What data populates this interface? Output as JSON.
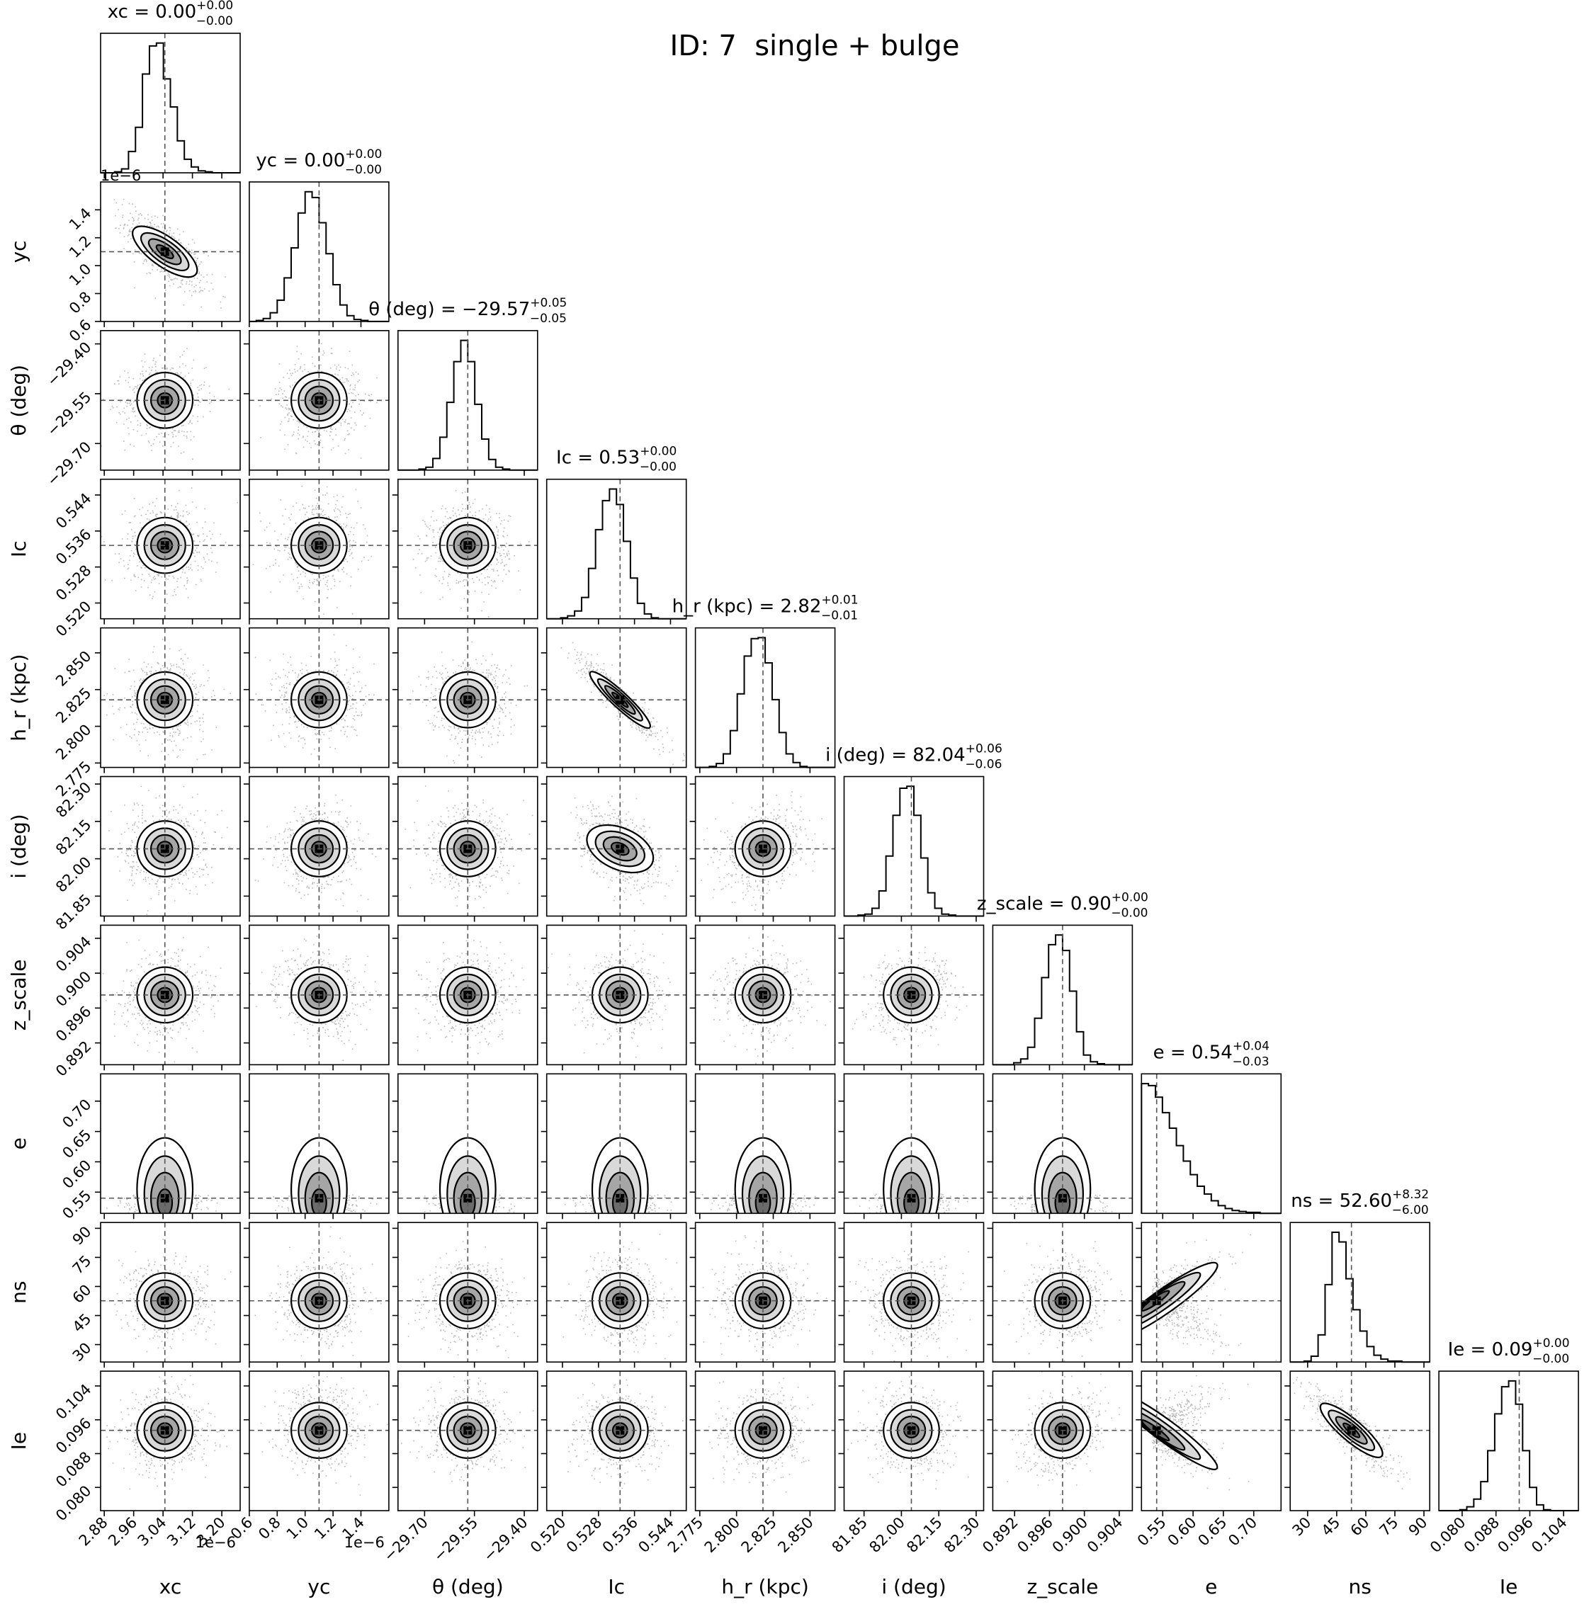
{
  "figure": {
    "suptitle": "ID: 7  single + bulge",
    "background": "#ffffff",
    "ink_color": "#000000",
    "marker_color": "#808080",
    "offset_text": "1e−6"
  },
  "chart_data": {
    "type": "corner",
    "n_params": 10,
    "params": [
      {
        "key": "xc",
        "label": "xc",
        "title_name": "xc",
        "median_text": "0.00",
        "plus": "+0.00",
        "minus": "−0.00",
        "median": 3.045e-06,
        "range": [
          2.87e-06,
          3.25e-06
        ],
        "scale_label": "1e−6",
        "ticks": [
          2.88e-06,
          2.96e-06,
          3.04e-06,
          3.12e-06,
          3.2e-06
        ],
        "tick_labels": [
          "2.88",
          "2.96",
          "3.04",
          "3.12",
          "3.20"
        ]
      },
      {
        "key": "yc",
        "label": "yc",
        "title_name": "yc",
        "median_text": "0.00",
        "plus": "+0.00",
        "minus": "−0.00",
        "median": 1.1e-06,
        "range": [
          6e-07,
          1.6e-06
        ],
        "scale_label": "1e−6",
        "ticks": [
          6e-07,
          8e-07,
          1e-06,
          1.2e-06,
          1.4e-06
        ],
        "tick_labels": [
          "0.6",
          "0.8",
          "1.0",
          "1.2",
          "1.4"
        ]
      },
      {
        "key": "theta",
        "label": "θ (deg)",
        "title_name": "θ (deg)",
        "median_text": "−29.57",
        "plus": "+0.05",
        "minus": "−0.05",
        "median": -29.57,
        "range": [
          -29.78,
          -29.36
        ],
        "ticks": [
          -29.7,
          -29.55,
          -29.4
        ],
        "tick_labels": [
          "−29.70",
          "−29.55",
          "−29.40"
        ]
      },
      {
        "key": "Ic",
        "label": "Ic",
        "title_name": "Ic",
        "median_text": "0.53",
        "plus": "+0.00",
        "minus": "−0.00",
        "median": 0.5328,
        "range": [
          0.5165,
          0.5475
        ],
        "ticks": [
          0.52,
          0.528,
          0.536,
          0.544
        ],
        "tick_labels": [
          "0.520",
          "0.528",
          "0.536",
          "0.544"
        ]
      },
      {
        "key": "hr",
        "label": "h_r (kpc)",
        "title_name": "h_r (kpc)",
        "median_text": "2.82",
        "plus": "+0.01",
        "minus": "−0.01",
        "median": 2.818,
        "range": [
          2.772,
          2.867
        ],
        "ticks": [
          2.775,
          2.8,
          2.825,
          2.85
        ],
        "tick_labels": [
          "2.775",
          "2.800",
          "2.825",
          "2.850"
        ]
      },
      {
        "key": "i",
        "label": "i (deg)",
        "title_name": "i (deg)",
        "median_text": "82.04",
        "plus": "+0.06",
        "minus": "−0.06",
        "median": 82.04,
        "range": [
          81.77,
          82.33
        ],
        "ticks": [
          81.85,
          82.0,
          82.15,
          82.3
        ],
        "tick_labels": [
          "81.85",
          "82.00",
          "82.15",
          "82.30"
        ]
      },
      {
        "key": "z_scale",
        "label": "z_scale",
        "title_name": "z_scale",
        "median_text": "0.90",
        "plus": "+0.00",
        "minus": "−0.00",
        "median": 0.8975,
        "range": [
          0.8895,
          0.9055
        ],
        "ticks": [
          0.892,
          0.896,
          0.9,
          0.904
        ],
        "tick_labels": [
          "0.892",
          "0.896",
          "0.900",
          "0.904"
        ]
      },
      {
        "key": "e",
        "label": "e",
        "title_name": "e",
        "median_text": "0.54",
        "plus": "+0.04",
        "minus": "−0.03",
        "median": 0.54,
        "range": [
          0.515,
          0.745
        ],
        "ticks": [
          0.55,
          0.6,
          0.65,
          0.7
        ],
        "tick_labels": [
          "0.55",
          "0.60",
          "0.65",
          "0.70"
        ]
      },
      {
        "key": "ns",
        "label": "ns",
        "title_name": "ns",
        "median_text": "52.60",
        "plus": "+8.32",
        "minus": "−6.00",
        "median": 52.6,
        "range": [
          21,
          93
        ],
        "ticks": [
          30,
          45,
          60,
          75,
          90
        ],
        "tick_labels": [
          "30",
          "45",
          "60",
          "75",
          "90"
        ]
      },
      {
        "key": "Ie",
        "label": "Ie",
        "title_name": "Ie",
        "median_text": "0.09",
        "plus": "+0.00",
        "minus": "−0.00",
        "median": 0.0935,
        "range": [
          0.0745,
          0.1075
        ],
        "ticks": [
          0.08,
          0.088,
          0.096,
          0.104
        ],
        "tick_labels": [
          "0.080",
          "0.088",
          "0.096",
          "0.104"
        ]
      }
    ],
    "histograms": [
      {
        "param": "xc",
        "values": [
          0,
          0,
          1,
          4,
          22,
          47,
          102,
          131,
          134,
          97,
          68,
          33,
          14,
          6,
          2,
          1,
          0,
          0,
          0,
          0
        ]
      },
      {
        "param": "yc",
        "values": [
          0,
          1,
          3,
          9,
          22,
          45,
          76,
          112,
          134,
          128,
          102,
          70,
          38,
          17,
          6,
          2,
          1,
          0,
          0,
          0
        ]
      },
      {
        "param": "theta",
        "values": [
          0,
          0,
          0,
          1,
          3,
          12,
          34,
          70,
          112,
          134,
          112,
          68,
          32,
          11,
          3,
          1,
          0,
          0,
          0,
          0
        ]
      },
      {
        "param": "Ic",
        "values": [
          0,
          0,
          1,
          3,
          8,
          22,
          52,
          92,
          122,
          134,
          118,
          80,
          42,
          16,
          5,
          1,
          0,
          0,
          0,
          0
        ]
      },
      {
        "param": "hr",
        "values": [
          0,
          0,
          1,
          4,
          14,
          38,
          76,
          115,
          133,
          134,
          108,
          70,
          36,
          14,
          5,
          1,
          0,
          0,
          0,
          0
        ]
      },
      {
        "param": "i",
        "values": [
          0,
          0,
          1,
          2,
          8,
          26,
          62,
          104,
          132,
          134,
          104,
          60,
          24,
          8,
          2,
          1,
          0,
          0,
          0,
          0
        ]
      },
      {
        "param": "z_scale",
        "values": [
          0,
          0,
          0,
          2,
          6,
          18,
          48,
          90,
          124,
          134,
          118,
          76,
          34,
          10,
          3,
          1,
          0,
          0,
          0,
          0
        ]
      },
      {
        "param": "e",
        "values": [
          134,
          132,
          120,
          104,
          88,
          70,
          54,
          40,
          28,
          20,
          13,
          8,
          5,
          3,
          2,
          1,
          1,
          0,
          0,
          0
        ]
      },
      {
        "param": "ns",
        "values": [
          0,
          0,
          1,
          6,
          28,
          80,
          134,
          124,
          86,
          54,
          32,
          16,
          7,
          3,
          1,
          1,
          0,
          0,
          0,
          0
        ]
      },
      {
        "param": "Ie",
        "values": [
          0,
          0,
          0,
          1,
          4,
          12,
          30,
          62,
          100,
          128,
          134,
          110,
          62,
          24,
          6,
          1,
          0,
          0,
          0,
          0
        ]
      }
    ],
    "correlations": [
      {
        "row": "yc",
        "col": "xc",
        "rho": -0.72
      },
      {
        "row": "theta",
        "col": "xc",
        "rho": 0.05
      },
      {
        "row": "theta",
        "col": "yc",
        "rho": 0.0
      },
      {
        "row": "Ic",
        "col": "xc",
        "rho": 0.0
      },
      {
        "row": "Ic",
        "col": "yc",
        "rho": 0.0
      },
      {
        "row": "Ic",
        "col": "theta",
        "rho": -0.05
      },
      {
        "row": "hr",
        "col": "xc",
        "rho": 0.0
      },
      {
        "row": "hr",
        "col": "yc",
        "rho": 0.0
      },
      {
        "row": "hr",
        "col": "theta",
        "rho": 0.0
      },
      {
        "row": "hr",
        "col": "Ic",
        "rho": -0.93
      },
      {
        "row": "i",
        "col": "xc",
        "rho": 0.0
      },
      {
        "row": "i",
        "col": "yc",
        "rho": 0.0
      },
      {
        "row": "i",
        "col": "theta",
        "rho": 0.0
      },
      {
        "row": "i",
        "col": "Ic",
        "rho": -0.45
      },
      {
        "row": "i",
        "col": "hr",
        "rho": 0.3
      },
      {
        "row": "z_scale",
        "col": "xc",
        "rho": 0.1
      },
      {
        "row": "z_scale",
        "col": "yc",
        "rho": -0.15
      },
      {
        "row": "z_scale",
        "col": "theta",
        "rho": 0.0
      },
      {
        "row": "z_scale",
        "col": "Ic",
        "rho": 0.0
      },
      {
        "row": "z_scale",
        "col": "hr",
        "rho": 0.0
      },
      {
        "row": "z_scale",
        "col": "i",
        "rho": 0.3
      },
      {
        "row": "e",
        "col": "xc",
        "rho": 0.0
      },
      {
        "row": "e",
        "col": "yc",
        "rho": 0.0
      },
      {
        "row": "e",
        "col": "theta",
        "rho": 0.0
      },
      {
        "row": "e",
        "col": "Ic",
        "rho": 0.0
      },
      {
        "row": "e",
        "col": "hr",
        "rho": 0.0
      },
      {
        "row": "e",
        "col": "i",
        "rho": 0.0
      },
      {
        "row": "e",
        "col": "z_scale",
        "rho": 0.0
      },
      {
        "row": "ns",
        "col": "xc",
        "rho": -0.1
      },
      {
        "row": "ns",
        "col": "yc",
        "rho": 0.0
      },
      {
        "row": "ns",
        "col": "theta",
        "rho": 0.0
      },
      {
        "row": "ns",
        "col": "Ic",
        "rho": 0.0
      },
      {
        "row": "ns",
        "col": "hr",
        "rho": 0.0
      },
      {
        "row": "ns",
        "col": "i",
        "rho": 0.0
      },
      {
        "row": "ns",
        "col": "z_scale",
        "rho": 0.0
      },
      {
        "row": "ns",
        "col": "e",
        "rho": 0.82
      },
      {
        "row": "Ie",
        "col": "xc",
        "rho": 0.0
      },
      {
        "row": "Ie",
        "col": "yc",
        "rho": 0.0
      },
      {
        "row": "Ie",
        "col": "theta",
        "rho": 0.0
      },
      {
        "row": "Ie",
        "col": "Ic",
        "rho": 0.0
      },
      {
        "row": "Ie",
        "col": "hr",
        "rho": 0.0
      },
      {
        "row": "Ie",
        "col": "i",
        "rho": 0.0
      },
      {
        "row": "Ie",
        "col": "z_scale",
        "rho": 0.3
      },
      {
        "row": "Ie",
        "col": "e",
        "rho": -0.85
      },
      {
        "row": "Ie",
        "col": "ns",
        "rho": -0.85
      }
    ],
    "contour_levels": [
      "0.5σ",
      "1σ",
      "1.5σ",
      "2σ"
    ],
    "median_lines": "dashed",
    "grid": false
  }
}
